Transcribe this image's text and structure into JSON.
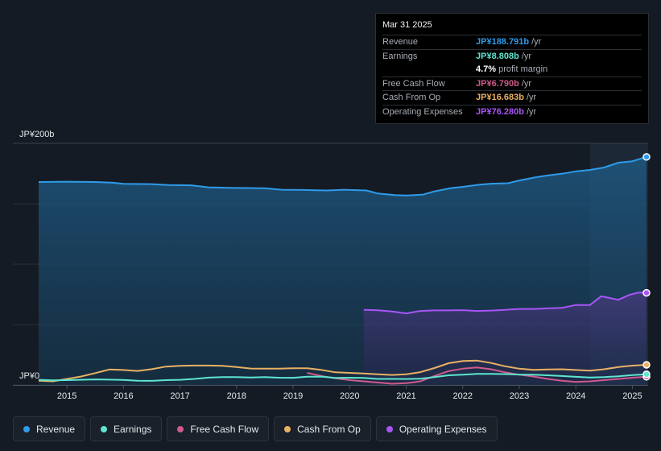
{
  "chart_data": {
    "type": "area",
    "title": "",
    "y_axis": {
      "top_label": "JP¥200b",
      "bottom_label": "JP¥0",
      "ylim": [
        0,
        200
      ],
      "unit": "JP¥ billions"
    },
    "x_axis": {
      "ticks": [
        "2015",
        "2016",
        "2017",
        "2018",
        "2019",
        "2020",
        "2021",
        "2022",
        "2023",
        "2024",
        "2025"
      ],
      "xlim": [
        2014.5,
        2025.25
      ]
    },
    "series": [
      {
        "name": "Revenue",
        "color": "#2f9bea",
        "fill": true,
        "end_marker": true,
        "points": [
          [
            2014.5,
            168
          ],
          [
            2015.0,
            168.3
          ],
          [
            2015.5,
            168
          ],
          [
            2015.8,
            167.5
          ],
          [
            2016.0,
            166.5
          ],
          [
            2016.5,
            166.3
          ],
          [
            2016.8,
            165.5
          ],
          [
            2017.2,
            165.3
          ],
          [
            2017.5,
            163.6
          ],
          [
            2017.9,
            163.2
          ],
          [
            2018.2,
            163
          ],
          [
            2018.5,
            162.8
          ],
          [
            2018.8,
            161.6
          ],
          [
            2019.2,
            161.4
          ],
          [
            2019.6,
            161
          ],
          [
            2019.9,
            161.6
          ],
          [
            2020.3,
            161
          ],
          [
            2020.5,
            158.5
          ],
          [
            2020.8,
            157.2
          ],
          [
            2021.0,
            156.8
          ],
          [
            2021.3,
            157.6
          ],
          [
            2021.5,
            160.3
          ],
          [
            2021.8,
            163
          ],
          [
            2022.0,
            164
          ],
          [
            2022.3,
            165.8
          ],
          [
            2022.5,
            166.6
          ],
          [
            2022.8,
            167
          ],
          [
            2023.0,
            169.3
          ],
          [
            2023.3,
            172
          ],
          [
            2023.5,
            173.4
          ],
          [
            2023.8,
            175.2
          ],
          [
            2024.0,
            176.8
          ],
          [
            2024.25,
            178
          ],
          [
            2024.5,
            180
          ],
          [
            2024.75,
            184
          ],
          [
            2025.0,
            185.2
          ],
          [
            2025.25,
            188.791
          ]
        ]
      },
      {
        "name": "Operating Expenses",
        "color": "#a855f7",
        "fill": true,
        "end_marker": true,
        "points": [
          [
            2020.25,
            62.2
          ],
          [
            2020.5,
            61.8
          ],
          [
            2020.75,
            60.8
          ],
          [
            2021.0,
            59.3
          ],
          [
            2021.25,
            61.3
          ],
          [
            2021.5,
            61.7
          ],
          [
            2021.75,
            61.7
          ],
          [
            2022.0,
            61.9
          ],
          [
            2022.25,
            61.3
          ],
          [
            2022.5,
            61.6
          ],
          [
            2022.75,
            62.2
          ],
          [
            2023.0,
            62.9
          ],
          [
            2023.25,
            62.9
          ],
          [
            2023.5,
            63.4
          ],
          [
            2023.75,
            63.8
          ],
          [
            2024.0,
            66.2
          ],
          [
            2024.25,
            66.2
          ],
          [
            2024.45,
            73.5
          ],
          [
            2024.6,
            72
          ],
          [
            2024.75,
            70.5
          ],
          [
            2024.95,
            74.6
          ],
          [
            2025.1,
            76.5
          ],
          [
            2025.25,
            76.28
          ]
        ]
      },
      {
        "name": "Cash From Op",
        "color": "#e9b164",
        "fill": false,
        "end_marker": true,
        "points": [
          [
            2014.5,
            3.5
          ],
          [
            2014.75,
            3
          ],
          [
            2015.0,
            5
          ],
          [
            2015.25,
            7
          ],
          [
            2015.5,
            9.8
          ],
          [
            2015.75,
            12.8
          ],
          [
            2016.0,
            12.4
          ],
          [
            2016.25,
            11.6
          ],
          [
            2016.5,
            13.1
          ],
          [
            2016.75,
            15.2
          ],
          [
            2017.0,
            15.8
          ],
          [
            2017.25,
            16.1
          ],
          [
            2017.5,
            16.1
          ],
          [
            2017.75,
            15.8
          ],
          [
            2018.0,
            14.8
          ],
          [
            2018.25,
            13.6
          ],
          [
            2018.5,
            13.5
          ],
          [
            2018.75,
            13.5
          ],
          [
            2019.0,
            13.8
          ],
          [
            2019.25,
            13.8
          ],
          [
            2019.5,
            12.5
          ],
          [
            2019.75,
            10.5
          ],
          [
            2020.0,
            10
          ],
          [
            2020.25,
            9.5
          ],
          [
            2020.5,
            8.8
          ],
          [
            2020.75,
            8.3
          ],
          [
            2021.0,
            8.8
          ],
          [
            2021.25,
            10.6
          ],
          [
            2021.5,
            14
          ],
          [
            2021.75,
            18
          ],
          [
            2022.0,
            19.8
          ],
          [
            2022.25,
            20.2
          ],
          [
            2022.5,
            18.2
          ],
          [
            2022.75,
            15.5
          ],
          [
            2023.0,
            13.5
          ],
          [
            2023.25,
            12.5
          ],
          [
            2023.5,
            12.8
          ],
          [
            2023.75,
            13
          ],
          [
            2024.0,
            12.4
          ],
          [
            2024.25,
            11.8
          ],
          [
            2024.5,
            13
          ],
          [
            2024.75,
            14.8
          ],
          [
            2025.0,
            16
          ],
          [
            2025.25,
            16.683
          ]
        ]
      },
      {
        "name": "Free Cash Flow",
        "color": "#d05a8c",
        "fill": false,
        "end_marker": true,
        "points": [
          [
            2019.25,
            10
          ],
          [
            2019.5,
            7.5
          ],
          [
            2019.75,
            5.5
          ],
          [
            2020.0,
            4
          ],
          [
            2020.25,
            3
          ],
          [
            2020.5,
            2
          ],
          [
            2020.75,
            1
          ],
          [
            2021.0,
            1.5
          ],
          [
            2021.25,
            3
          ],
          [
            2021.5,
            7.5
          ],
          [
            2021.75,
            11.5
          ],
          [
            2022.0,
            13.5
          ],
          [
            2022.25,
            14.5
          ],
          [
            2022.5,
            13
          ],
          [
            2022.75,
            10.5
          ],
          [
            2023.0,
            8.5
          ],
          [
            2023.25,
            7
          ],
          [
            2023.5,
            5
          ],
          [
            2023.75,
            3.5
          ],
          [
            2024.0,
            2.5
          ],
          [
            2024.25,
            3
          ],
          [
            2024.5,
            4
          ],
          [
            2024.75,
            5
          ],
          [
            2025.0,
            6
          ],
          [
            2025.25,
            6.79
          ]
        ]
      },
      {
        "name": "Earnings",
        "color": "#5ee6cf",
        "fill": false,
        "end_marker": true,
        "points": [
          [
            2014.5,
            4.3
          ],
          [
            2014.75,
            3.8
          ],
          [
            2015.0,
            4
          ],
          [
            2015.5,
            4.6
          ],
          [
            2016.0,
            4.2
          ],
          [
            2016.25,
            3.5
          ],
          [
            2016.5,
            3.4
          ],
          [
            2016.75,
            4
          ],
          [
            2017.0,
            4.3
          ],
          [
            2017.25,
            5
          ],
          [
            2017.5,
            6.1
          ],
          [
            2017.75,
            6.5
          ],
          [
            2018.0,
            6.5
          ],
          [
            2018.25,
            6.2
          ],
          [
            2018.5,
            6.5
          ],
          [
            2018.75,
            6
          ],
          [
            2019.0,
            5.9
          ],
          [
            2019.25,
            6.8
          ],
          [
            2019.5,
            6.9
          ],
          [
            2019.75,
            5.8
          ],
          [
            2020.0,
            6
          ],
          [
            2020.25,
            5.8
          ],
          [
            2020.5,
            5
          ],
          [
            2020.75,
            5
          ],
          [
            2021.0,
            4.9
          ],
          [
            2021.25,
            5.2
          ],
          [
            2021.5,
            6.5
          ],
          [
            2021.75,
            8
          ],
          [
            2022.0,
            8.5
          ],
          [
            2022.25,
            9.2
          ],
          [
            2022.5,
            9.2
          ],
          [
            2022.75,
            9
          ],
          [
            2023.0,
            8.6
          ],
          [
            2023.25,
            8.5
          ],
          [
            2023.5,
            8
          ],
          [
            2023.75,
            7.4
          ],
          [
            2024.0,
            6.7
          ],
          [
            2024.25,
            6.2
          ],
          [
            2024.5,
            6.5
          ],
          [
            2024.75,
            7.2
          ],
          [
            2025.0,
            8.2
          ],
          [
            2025.25,
            8.808
          ]
        ]
      }
    ]
  },
  "tooltip": {
    "date": "Mar 31 2025",
    "rows": [
      {
        "label": "Revenue",
        "value": "JP¥188.791b",
        "unit": "/yr",
        "color": "#2f9bea"
      },
      {
        "label": "Earnings",
        "value": "JP¥8.808b",
        "unit": "/yr",
        "color": "#5ee6cf"
      },
      {
        "label": "",
        "value": "4.7%",
        "unit": "profit margin",
        "color": "#ffffff",
        "sub": true
      },
      {
        "label": "Free Cash Flow",
        "value": "JP¥6.790b",
        "unit": "/yr",
        "color": "#d05a8c"
      },
      {
        "label": "Cash From Op",
        "value": "JP¥16.683b",
        "unit": "/yr",
        "color": "#e9b164"
      },
      {
        "label": "Operating Expenses",
        "value": "JP¥76.280b",
        "unit": "/yr",
        "color": "#a855f7"
      }
    ]
  },
  "legend": [
    {
      "label": "Revenue",
      "color": "#2f9bea"
    },
    {
      "label": "Earnings",
      "color": "#5ee6cf"
    },
    {
      "label": "Free Cash Flow",
      "color": "#d05a8c"
    },
    {
      "label": "Cash From Op",
      "color": "#e9b164"
    },
    {
      "label": "Operating Expenses",
      "color": "#a855f7"
    }
  ]
}
